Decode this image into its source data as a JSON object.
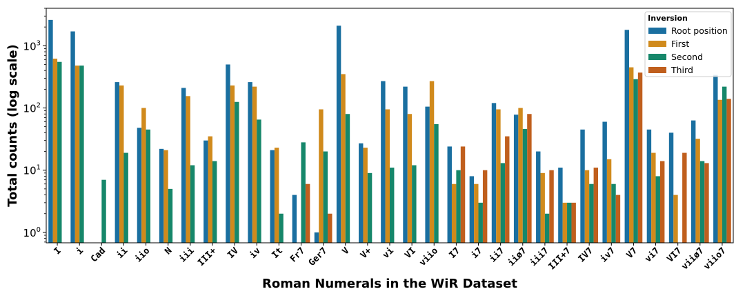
{
  "chart_data": {
    "type": "bar",
    "xlabel": "Roman Numerals in the WiR Dataset",
    "ylabel": "Total counts (log scale)",
    "yscale": "log",
    "ylim": [
      0.68,
      4000
    ],
    "yticks": [
      {
        "value": 1,
        "base": "10",
        "exp": "0"
      },
      {
        "value": 10,
        "base": "10",
        "exp": "1"
      },
      {
        "value": 100,
        "base": "10",
        "exp": "2"
      },
      {
        "value": 1000,
        "base": "10",
        "exp": "3"
      }
    ],
    "legend": {
      "title": "Inversion",
      "placement": "top-right"
    },
    "categories": [
      "I",
      "i",
      "Cad",
      "ii",
      "iio",
      "N",
      "iii",
      "III+",
      "IV",
      "iv",
      "It",
      "Fr7",
      "Ger7",
      "V",
      "V+",
      "vi",
      "VI",
      "viio",
      "I7",
      "i7",
      "ii7",
      "iiø7",
      "iii7",
      "III+7",
      "IV7",
      "iv7",
      "V7",
      "vi7",
      "VI7",
      "viiø7",
      "viio7"
    ],
    "series": [
      {
        "name": "Root position",
        "color": "#1a6fa0",
        "values": [
          2600,
          1700,
          null,
          260,
          48,
          22,
          210,
          30,
          500,
          260,
          21,
          4,
          1,
          2100,
          27,
          270,
          220,
          105,
          24,
          8,
          120,
          78,
          20,
          11,
          45,
          60,
          1800,
          45,
          40,
          63,
          340
        ]
      },
      {
        "name": "First",
        "color": "#d08a1c",
        "values": [
          620,
          480,
          null,
          230,
          100,
          21,
          155,
          35,
          230,
          220,
          23,
          null,
          95,
          350,
          23,
          95,
          80,
          270,
          6,
          6,
          95,
          100,
          9,
          3,
          10,
          15,
          450,
          19,
          4,
          32,
          135
        ]
      },
      {
        "name": "Second",
        "color": "#16876a",
        "values": [
          550,
          480,
          7,
          19,
          45,
          5,
          12,
          14,
          125,
          65,
          2,
          28,
          20,
          80,
          9,
          11,
          12,
          55,
          10,
          3,
          13,
          46,
          2,
          3,
          6,
          6,
          290,
          8,
          null,
          14,
          220
        ]
      },
      {
        "name": "Third",
        "color": "#c05f1d",
        "values": [
          null,
          null,
          null,
          null,
          null,
          null,
          null,
          null,
          null,
          null,
          null,
          6,
          2,
          null,
          null,
          null,
          null,
          null,
          24,
          10,
          35,
          80,
          10,
          3,
          11,
          4,
          370,
          14,
          19,
          13,
          140
        ]
      }
    ]
  }
}
